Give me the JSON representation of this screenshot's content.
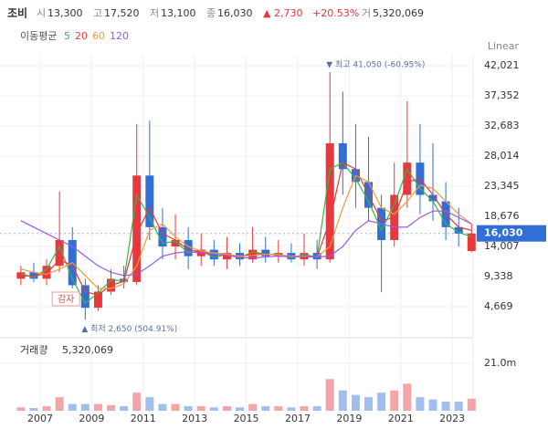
{
  "header": {
    "name": "조비",
    "fields": [
      {
        "label": "시",
        "value": "13,300"
      },
      {
        "label": "고",
        "value": "17,520"
      },
      {
        "label": "저",
        "value": "13,100"
      },
      {
        "label": "종",
        "value": "16,030"
      }
    ],
    "change": "▲ 2,730",
    "change_pct": "+20.53%",
    "volume_label": "거",
    "volume_value": "5,320,069"
  },
  "chart_data": {
    "type": "candlestick",
    "scale_label": "Linear",
    "ma_title": "이동평균",
    "x": [
      2006.25,
      2006.75,
      2007.25,
      2007.75,
      2008.25,
      2008.75,
      2009.25,
      2009.75,
      2010.25,
      2010.75,
      2011.25,
      2011.75,
      2012.25,
      2012.75,
      2013.25,
      2013.75,
      2014.25,
      2014.75,
      2015.25,
      2015.75,
      2016.25,
      2016.75,
      2017.25,
      2017.75,
      2018.25,
      2018.75,
      2019.25,
      2019.75,
      2020.25,
      2020.75,
      2021.25,
      2021.75,
      2022.25,
      2022.75,
      2023.25,
      2023.75
    ],
    "open": [
      9000,
      10000,
      9000,
      11000,
      15000,
      8000,
      4500,
      7000,
      9000,
      8500,
      25000,
      17000,
      14000,
      15000,
      12500,
      13500,
      12000,
      13000,
      12000,
      13500,
      12500,
      13000,
      12000,
      13000,
      12000,
      30000,
      26000,
      24000,
      20000,
      15000,
      22000,
      27000,
      22000,
      21000,
      17000,
      13300
    ],
    "high": [
      11000,
      11500,
      12000,
      22500,
      17000,
      9000,
      8000,
      10500,
      11000,
      33000,
      33500,
      20000,
      19000,
      17000,
      16000,
      15000,
      15500,
      14500,
      17000,
      15500,
      15000,
      14500,
      16000,
      15000,
      41050,
      38000,
      33000,
      31000,
      22000,
      27000,
      36500,
      33000,
      30000,
      24000,
      20000,
      17520
    ],
    "low": [
      8000,
      8500,
      8000,
      10000,
      7500,
      2650,
      4000,
      6500,
      7500,
      8000,
      15000,
      12000,
      12000,
      10500,
      11000,
      11000,
      10500,
      11000,
      11500,
      11500,
      11500,
      11500,
      11000,
      10500,
      11500,
      22000,
      20000,
      18000,
      6900,
      14000,
      20000,
      19000,
      18000,
      15000,
      14000,
      13100
    ],
    "close": [
      10000,
      9000,
      11000,
      15000,
      8000,
      4500,
      7000,
      9000,
      8500,
      25000,
      17000,
      14000,
      15000,
      12500,
      13500,
      12000,
      13000,
      12000,
      13500,
      12500,
      13000,
      12000,
      13000,
      12000,
      30000,
      26000,
      24000,
      20000,
      15000,
      22000,
      27000,
      22000,
      21000,
      17000,
      16000,
      16030
    ],
    "volume": [
      1500000,
      1200000,
      2000000,
      6000000,
      3000000,
      3000000,
      3000000,
      2500000,
      2000000,
      8000000,
      6000000,
      3000000,
      3000000,
      2000000,
      2000000,
      1500000,
      2000000,
      1500000,
      3000000,
      2000000,
      2000000,
      1500000,
      2000000,
      2000000,
      14000000,
      9000000,
      7000000,
      6000000,
      8000000,
      9000000,
      12000000,
      6000000,
      5000000,
      4000000,
      4000000,
      5320069
    ],
    "up_color": "#e8383d",
    "down_color": "#2f6fd6",
    "ma_series": [
      {
        "name": "5",
        "color": "#3bb54a",
        "values": [
          9800,
          9200,
          10500,
          14000,
          9000,
          5200,
          6800,
          8800,
          8700,
          22000,
          18500,
          14500,
          14800,
          13000,
          13300,
          12300,
          12800,
          12200,
          13200,
          12800,
          12800,
          12200,
          12800,
          12300,
          26000,
          27000,
          24500,
          21000,
          16500,
          20500,
          26000,
          23000,
          21000,
          17500,
          16200,
          15500
        ]
      },
      {
        "name": "20",
        "color": "#e8383d",
        "values": [
          9500,
          9400,
          9800,
          12000,
          11000,
          7000,
          6500,
          8000,
          8600,
          16000,
          20000,
          16000,
          15000,
          13500,
          13200,
          12800,
          12700,
          12400,
          12900,
          12800,
          12700,
          12400,
          12600,
          12400,
          18000,
          27000,
          26000,
          22000,
          18000,
          18500,
          24000,
          24500,
          22000,
          19000,
          17000,
          16500
        ]
      },
      {
        "name": "60",
        "color": "#f39a3c",
        "values": [
          10500,
          10000,
          9700,
          10500,
          11500,
          9500,
          7500,
          7500,
          8200,
          11000,
          16500,
          17500,
          15500,
          14000,
          13300,
          13000,
          12800,
          12500,
          12600,
          12800,
          12700,
          12500,
          12500,
          12400,
          14000,
          20000,
          25000,
          24000,
          20000,
          19000,
          21000,
          23500,
          23000,
          21000,
          19000,
          17500
        ]
      },
      {
        "name": "120",
        "color": "#9b59e6",
        "values": [
          18000,
          17000,
          16000,
          15000,
          14000,
          12500,
          11000,
          10000,
          9500,
          9700,
          11000,
          12500,
          13000,
          13200,
          13000,
          12800,
          12600,
          12300,
          12200,
          12400,
          12500,
          12400,
          12400,
          12400,
          12500,
          14000,
          16500,
          18000,
          17500,
          17000,
          17000,
          18500,
          19500,
          19500,
          18500,
          17500
        ]
      }
    ],
    "xlim": [
      2005.44,
      2023.81
    ],
    "xticks": [
      2007,
      2009,
      2011,
      2013,
      2015,
      2017,
      2019,
      2021,
      2023
    ],
    "ylim": [
      0,
      43719
    ],
    "yticks": [
      {
        "value": 4669,
        "label": "4,669"
      },
      {
        "value": 9338,
        "label": "9,338"
      },
      {
        "value": 14007,
        "label": "14,007"
      },
      {
        "value": 18676,
        "label": "18,676"
      },
      {
        "value": 23345,
        "label": "23,345"
      },
      {
        "value": 28014,
        "label": "28,014"
      },
      {
        "value": 32683,
        "label": "32,683"
      },
      {
        "value": 37352,
        "label": "37,352"
      },
      {
        "value": 42021,
        "label": "42,021"
      }
    ],
    "volume_title": "거래량",
    "volume_value_label": "5,320,069",
    "y2lim": [
      0,
      30300000
    ],
    "y2ticks": [
      {
        "value": 21000000,
        "label": "21.0m"
      }
    ],
    "current_price_label": "16,030",
    "annotations": [
      {
        "text": "▼ 최고 41,050 (-60.95%)",
        "x": 2018.25,
        "y": 41050
      },
      {
        "text": "▲ 최저 2,650 (504.91%)",
        "x": 2008.75,
        "y": 2650
      },
      {
        "text": "감자",
        "x": 2008.0
      }
    ],
    "grid": true
  }
}
